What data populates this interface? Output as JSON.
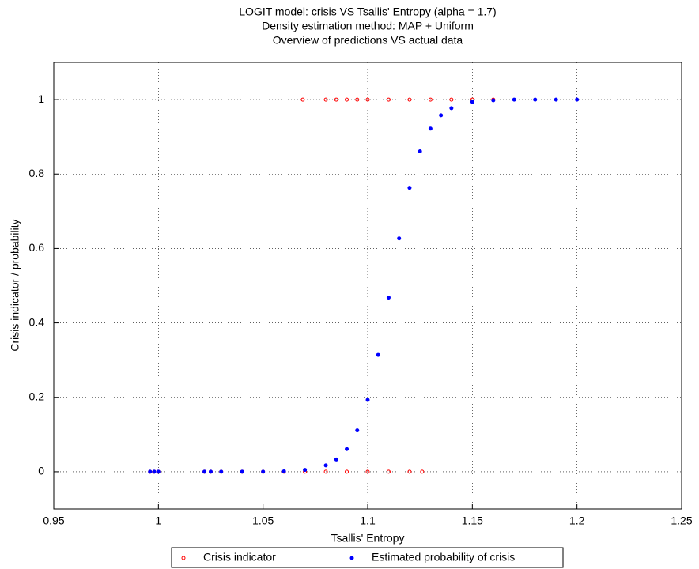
{
  "chart_data": {
    "type": "scatter",
    "title": [
      "LOGIT model: crisis VS Tsallis' Entropy (alpha = 1.7)",
      "Density estimation method: MAP + Uniform",
      "Overview of predictions VS actual data"
    ],
    "xlabel": "Tsallis' Entropy",
    "ylabel": "Crisis indicator / probability",
    "xlim": [
      0.95,
      1.25
    ],
    "xticks": [
      0.95,
      1,
      1.05,
      1.1,
      1.15,
      1.2,
      1.25
    ],
    "ylim": [
      -0.1,
      1.1
    ],
    "yticks": [
      0,
      0.2,
      0.4,
      0.6,
      0.8,
      1
    ],
    "grid": true,
    "legend": "bottom",
    "series": [
      {
        "name": "Crisis indicator",
        "color": "#ff0000",
        "marker": "open",
        "x": [
          0.996,
          0.998,
          1.0,
          1.022,
          1.025,
          1.03,
          1.04,
          1.05,
          1.06,
          1.07,
          1.08,
          1.09,
          1.1,
          1.11,
          1.12,
          1.126,
          1.069,
          1.08,
          1.085,
          1.09,
          1.095,
          1.1,
          1.11,
          1.12,
          1.13,
          1.14,
          1.15,
          1.16
        ],
        "values": [
          0,
          0,
          0,
          0,
          0,
          0,
          0,
          0,
          0,
          0,
          0,
          0,
          0,
          0,
          0,
          0,
          1,
          1,
          1,
          1,
          1,
          1,
          1,
          1,
          1,
          1,
          1,
          1
        ]
      },
      {
        "name": "Estimated probability of crisis",
        "color": "#0000ff",
        "marker": "filled",
        "x": [
          0.996,
          0.998,
          1.0,
          1.022,
          1.025,
          1.03,
          1.04,
          1.05,
          1.06,
          1.07,
          1.08,
          1.085,
          1.09,
          1.095,
          1.1,
          1.105,
          1.11,
          1.115,
          1.12,
          1.125,
          1.13,
          1.135,
          1.14,
          1.15,
          1.16,
          1.17,
          1.18,
          1.19,
          1.2
        ],
        "values": [
          0,
          0,
          0,
          0,
          0,
          0,
          0,
          0,
          0.001,
          0.005,
          0.017,
          0.033,
          0.061,
          0.111,
          0.193,
          0.314,
          0.468,
          0.627,
          0.763,
          0.861,
          0.922,
          0.958,
          0.977,
          0.994,
          0.998,
          1,
          1,
          1,
          1
        ]
      }
    ]
  }
}
